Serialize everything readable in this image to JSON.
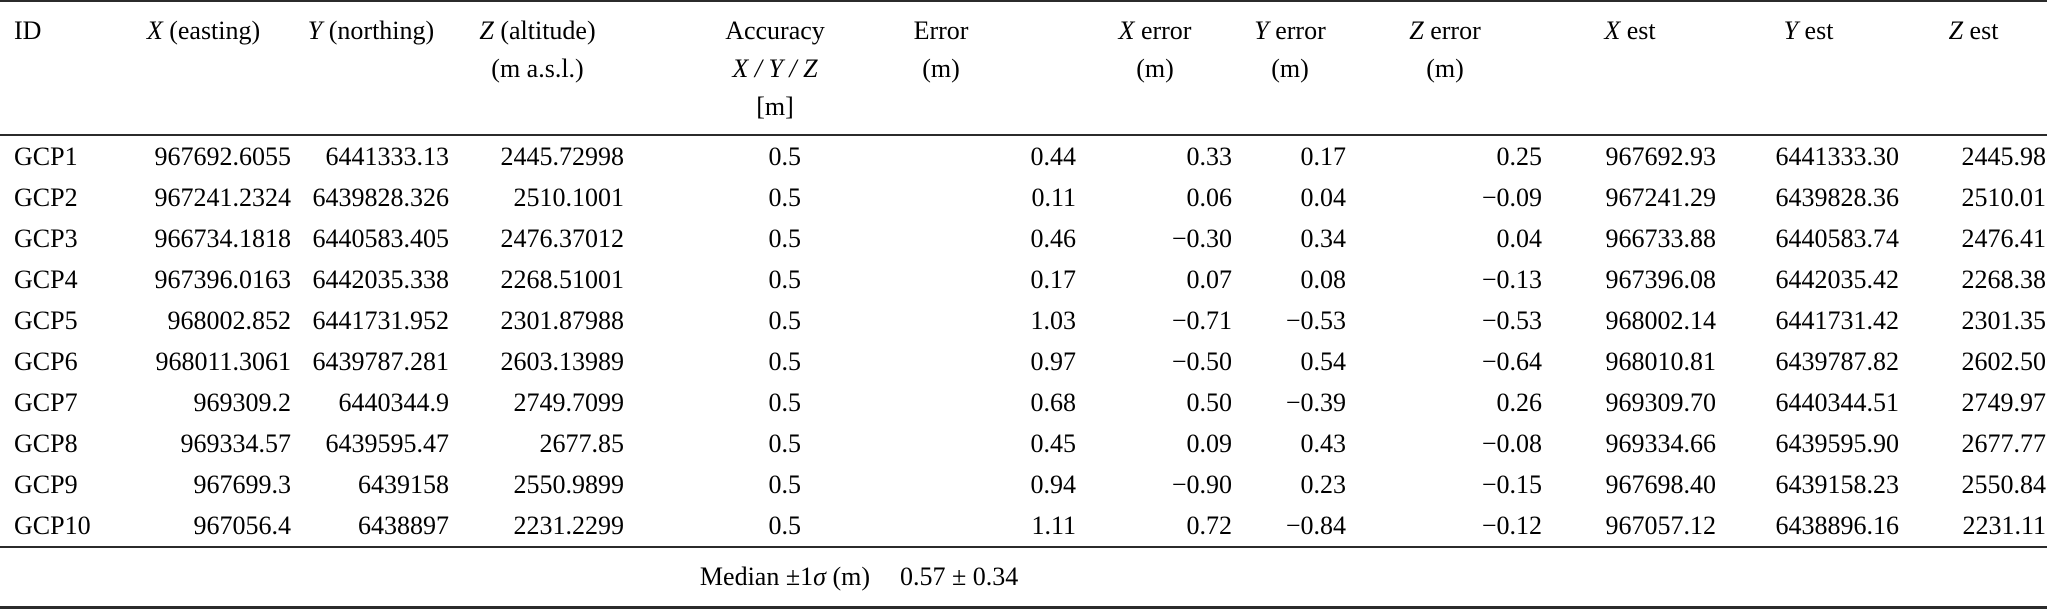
{
  "meta": {
    "background_color": "#ffffff",
    "text_color": "#000000",
    "rule_color": "#2b2b2b"
  },
  "table": {
    "column_keys": [
      "id",
      "x_easting",
      "y_northing",
      "z_altitude",
      "accuracy",
      "error",
      "x_error",
      "y_error",
      "z_error",
      "x_est",
      "y_est",
      "z_est"
    ],
    "header": {
      "id": "ID",
      "x_easting": {
        "sym": "X",
        "rest": " (easting)"
      },
      "y_northing": {
        "sym": "Y",
        "rest": " (northing)"
      },
      "z_altitude": {
        "sym": "Z",
        "rest": " (altitude)",
        "unit": "(m a.s.l.)"
      },
      "accuracy": {
        "line1": "Accuracy",
        "line2": "X / Y / Z",
        "line3": "[m]"
      },
      "error": {
        "line1": "Error",
        "unit": "(m)"
      },
      "x_error": {
        "sym": "X",
        "rest": " error",
        "unit": "(m)"
      },
      "y_error": {
        "sym": "Y",
        "rest": " error",
        "unit": "(m)"
      },
      "z_error": {
        "sym": "Z",
        "rest": " error",
        "unit": "(m)"
      },
      "x_est": {
        "sym": "X",
        "rest": " est"
      },
      "y_est": {
        "sym": "Y",
        "rest": " est"
      },
      "z_est": {
        "sym": "Z",
        "rest": " est"
      }
    },
    "rows": [
      {
        "id": "GCP1",
        "values": [
          "967692.6055",
          "6441333.13",
          "2445.72998",
          "0.5",
          "0.44",
          "0.33",
          "0.17",
          "0.25",
          "967692.93",
          "6441333.30",
          "2445.98"
        ]
      },
      {
        "id": "GCP2",
        "values": [
          "967241.2324",
          "6439828.326",
          "2510.1001",
          "0.5",
          "0.11",
          "0.06",
          "0.04",
          "−0.09",
          "967241.29",
          "6439828.36",
          "2510.01"
        ]
      },
      {
        "id": "GCP3",
        "values": [
          "966734.1818",
          "6440583.405",
          "2476.37012",
          "0.5",
          "0.46",
          "−0.30",
          "0.34",
          "0.04",
          "966733.88",
          "6440583.74",
          "2476.41"
        ]
      },
      {
        "id": "GCP4",
        "values": [
          "967396.0163",
          "6442035.338",
          "2268.51001",
          "0.5",
          "0.17",
          "0.07",
          "0.08",
          "−0.13",
          "967396.08",
          "6442035.42",
          "2268.38"
        ]
      },
      {
        "id": "GCP5",
        "values": [
          "968002.852",
          "6441731.952",
          "2301.87988",
          "0.5",
          "1.03",
          "−0.71",
          "−0.53",
          "−0.53",
          "968002.14",
          "6441731.42",
          "2301.35"
        ]
      },
      {
        "id": "GCP6",
        "values": [
          "968011.3061",
          "6439787.281",
          "2603.13989",
          "0.5",
          "0.97",
          "−0.50",
          "0.54",
          "−0.64",
          "968010.81",
          "6439787.82",
          "2602.50"
        ]
      },
      {
        "id": "GCP7",
        "values": [
          "969309.2",
          "6440344.9",
          "2749.7099",
          "0.5",
          "0.68",
          "0.50",
          "−0.39",
          "0.26",
          "969309.70",
          "6440344.51",
          "2749.97"
        ]
      },
      {
        "id": "GCP8",
        "values": [
          "969334.57",
          "6439595.47",
          "2677.85",
          "0.5",
          "0.45",
          "0.09",
          "0.43",
          "−0.08",
          "969334.66",
          "6439595.90",
          "2677.77"
        ]
      },
      {
        "id": "GCP9",
        "values": [
          "967699.3",
          "6439158",
          "2550.9899",
          "0.5",
          "0.94",
          "−0.90",
          "0.23",
          "−0.15",
          "967698.40",
          "6439158.23",
          "2550.84"
        ]
      },
      {
        "id": "GCP10",
        "values": [
          "967056.4",
          "6438897",
          "2231.2299",
          "0.5",
          "1.11",
          "0.72",
          "−0.84",
          "−0.12",
          "967057.12",
          "6438896.16",
          "2231.11"
        ]
      }
    ],
    "footer": {
      "label_prefix": "Median ±1",
      "label_sigma": "σ",
      "label_suffix": " (m)",
      "value": "0.57 ± 0.34"
    }
  }
}
